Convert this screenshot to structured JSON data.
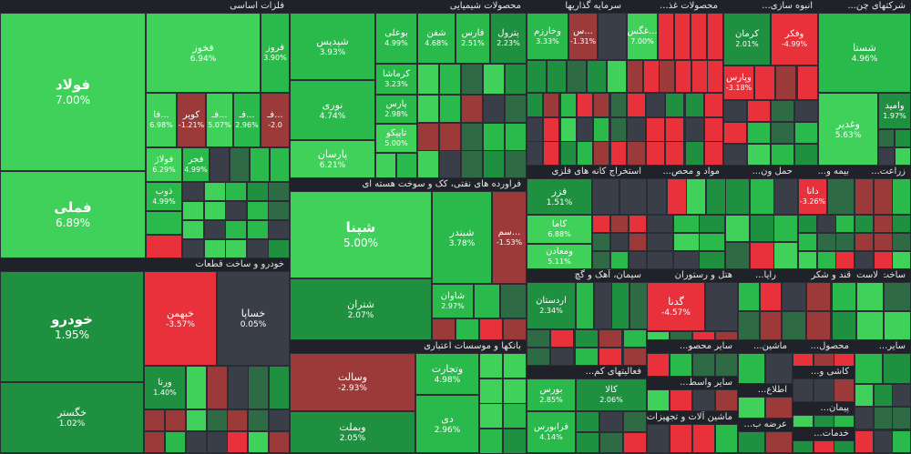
{
  "chart_data": {
    "type": "treemap",
    "colors": {
      "bright_green": "#3fd15a",
      "green": "#2ab94b",
      "mid_green": "#1f8f40",
      "dark_green": "#2e6b45",
      "neutral": "#3a3e48",
      "dark_red": "#9c3a3a",
      "red": "#e8313a",
      "header": "#1f2229",
      "background": "#2a2d35"
    },
    "sectors": [
      {
        "title": "فلزات اساسی",
        "stocks": [
          {
            "name": "فولاد",
            "pct": "7.00%"
          },
          {
            "name": "فملی",
            "pct": "6.89%"
          },
          {
            "name": "فخوز",
            "pct": "6.94%"
          },
          {
            "name": "فروز",
            "pct": "3.90%"
          },
          {
            "name": "فا...",
            "pct": "6.98%"
          },
          {
            "name": "کویر",
            "pct": "-1.21%"
          },
          {
            "name": "فـ...",
            "pct": "5.07%"
          },
          {
            "name": "فـ...",
            "pct": "2.96%"
          },
          {
            "name": "فـ...",
            "pct": "-2.0"
          },
          {
            "name": "فولاژ",
            "pct": "6.29%"
          },
          {
            "name": "فجر",
            "pct": "4.99%"
          },
          {
            "name": "ذوب",
            "pct": "4.99%"
          }
        ]
      },
      {
        "title": "خودرو و ساخت قطعات",
        "stocks": [
          {
            "name": "خودرو",
            "pct": "1.95%"
          },
          {
            "name": "خگستر",
            "pct": "1.02%"
          },
          {
            "name": "خبهمن",
            "pct": "-3.57%"
          },
          {
            "name": "خساپا",
            "pct": "0.05%"
          },
          {
            "name": "ورنا",
            "pct": "1.40%"
          }
        ]
      },
      {
        "title": "محصولات شیمیایی",
        "stocks": [
          {
            "name": "شپدیس",
            "pct": "3.93%"
          },
          {
            "name": "نوری",
            "pct": "4.74%"
          },
          {
            "name": "پارسان",
            "pct": "6.21%"
          },
          {
            "name": "بوعلی",
            "pct": "4.99%"
          },
          {
            "name": "شفن",
            "pct": "4.68%"
          },
          {
            "name": "فارس",
            "pct": "2.51%"
          },
          {
            "name": "پترول",
            "pct": "2.23%"
          },
          {
            "name": "کرماشا",
            "pct": "3.23%"
          },
          {
            "name": "پارس",
            "pct": "2.98%"
          },
          {
            "name": "تاپیکو",
            "pct": "5.00%"
          }
        ]
      },
      {
        "title": "فراورده های نفتی، کک و سوخت هسته ای",
        "stocks": [
          {
            "name": "شپنا",
            "pct": "5.00%"
          },
          {
            "name": "شتران",
            "pct": "2.07%"
          },
          {
            "name": "شبندر",
            "pct": "3.78%"
          },
          {
            "name": "سم...",
            "pct": "-1.53%"
          },
          {
            "name": "شاوان",
            "pct": "2.97%"
          }
        ]
      },
      {
        "title": "بانکها و موسسات اعتباری",
        "stocks": [
          {
            "name": "وسالت",
            "pct": "-2.93%"
          },
          {
            "name": "وبملت",
            "pct": "2.05%"
          },
          {
            "name": "وتجارت",
            "pct": "4.98%"
          },
          {
            "name": "دی",
            "pct": "2.96%"
          }
        ]
      },
      {
        "title": "سرمایه گذاریها",
        "stocks": [
          {
            "name": "وخارزم",
            "pct": "3.33%"
          },
          {
            "name": "س...",
            "pct": "-1.31%"
          }
        ]
      },
      {
        "title": "محصولات غذ...",
        "stocks": [
          {
            "name": "غگس...",
            "pct": "7.00%"
          }
        ]
      },
      {
        "title": "انبوه سازی...",
        "stocks": [
          {
            "name": "کرمان",
            "pct": "2.01%"
          },
          {
            "name": "وپارس",
            "pct": "-3.18%"
          }
        ]
      },
      {
        "title": "شرکتهای چن...",
        "stocks": [
          {
            "name": "وفکر",
            "pct": "-4.99%"
          },
          {
            "name": "شستا",
            "pct": "4.96%"
          },
          {
            "name": "وغدیر",
            "pct": "5.63%"
          },
          {
            "name": "وامید",
            "pct": "1.97%"
          }
        ]
      },
      {
        "title": "استخراج کانه های فلزی",
        "stocks": [
          {
            "name": "فزر",
            "pct": "1.51%"
          },
          {
            "name": "کاما",
            "pct": "6.88%"
          },
          {
            "name": "ومعادن",
            "pct": "5.11%"
          }
        ]
      },
      {
        "title": "مواد و محص...",
        "stocks": []
      },
      {
        "title": "حمل ون...",
        "stocks": []
      },
      {
        "title": "بیمه و...",
        "stocks": [
          {
            "name": "دانا",
            "pct": "-3.26%"
          }
        ]
      },
      {
        "title": "زراعت...",
        "stocks": []
      },
      {
        "title": "سیمان، آهک و گچ",
        "stocks": [
          {
            "name": "اردستان",
            "pct": "2.34%"
          }
        ]
      },
      {
        "title": "هتل و رستوران",
        "stocks": [
          {
            "name": "گدنا",
            "pct": "-4.57%"
          }
        ]
      },
      {
        "title": "فعالیتهای کم...",
        "stocks": [
          {
            "name": "بورس",
            "pct": "2.85%"
          },
          {
            "name": "کالا",
            "pct": "2.06%"
          },
          {
            "name": "فرابورس",
            "pct": "4.14%"
          }
        ]
      },
      {
        "title": "ماشین آلات و تجهیزات",
        "stocks": []
      },
      {
        "title": "سایر محصو...",
        "stocks": []
      },
      {
        "title": "سایر واسط...",
        "stocks": []
      },
      {
        "title": "رایا...",
        "stocks": []
      },
      {
        "title": "قند و شکر",
        "stocks": []
      },
      {
        "title": "لاست...",
        "stocks": []
      },
      {
        "title": "ساخت...",
        "stocks": []
      },
      {
        "title": "ماشین...",
        "stocks": []
      },
      {
        "title": "محصول...",
        "stocks": []
      },
      {
        "title": "کاشی و...",
        "stocks": []
      },
      {
        "title": "اطلاع...",
        "stocks": []
      },
      {
        "title": "پیمان...",
        "stocks": []
      },
      {
        "title": "عرضه ب...",
        "stocks": []
      },
      {
        "title": "خدمات...",
        "stocks": []
      },
      {
        "title": "سایر...",
        "stocks": []
      }
    ]
  }
}
